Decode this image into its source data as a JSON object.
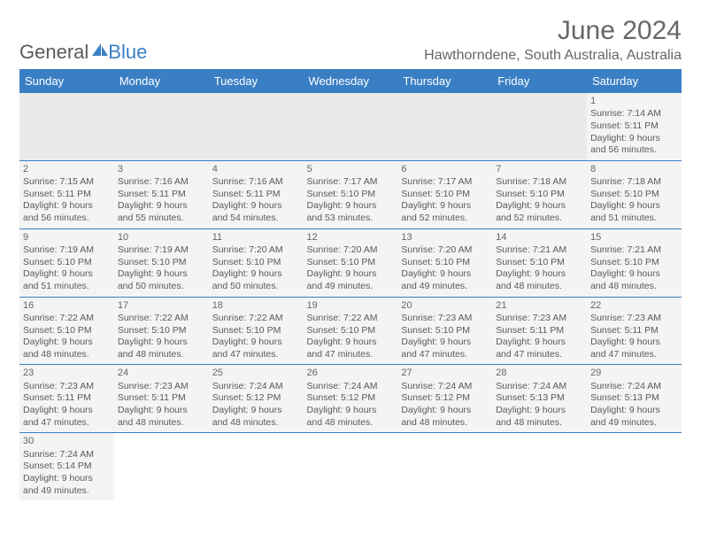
{
  "logo": {
    "text1": "General",
    "text2": "Blue",
    "icon_color": "#3a7fc4"
  },
  "title": "June 2024",
  "location": "Hawthorndene, South Australia, Australia",
  "colors": {
    "header_bg": "#3a7fc4",
    "header_text": "#ffffff",
    "cell_bg": "#f4f4f4",
    "empty_bg": "#eaeaea",
    "text": "#5a5a5a",
    "row_border": "#3a7fc4"
  },
  "day_headers": [
    "Sunday",
    "Monday",
    "Tuesday",
    "Wednesday",
    "Thursday",
    "Friday",
    "Saturday"
  ],
  "weeks": [
    [
      null,
      null,
      null,
      null,
      null,
      null,
      {
        "n": "1",
        "sr": "Sunrise: 7:14 AM",
        "ss": "Sunset: 5:11 PM",
        "dl": "Daylight: 9 hours and 56 minutes."
      }
    ],
    [
      {
        "n": "2",
        "sr": "Sunrise: 7:15 AM",
        "ss": "Sunset: 5:11 PM",
        "dl": "Daylight: 9 hours and 56 minutes."
      },
      {
        "n": "3",
        "sr": "Sunrise: 7:16 AM",
        "ss": "Sunset: 5:11 PM",
        "dl": "Daylight: 9 hours and 55 minutes."
      },
      {
        "n": "4",
        "sr": "Sunrise: 7:16 AM",
        "ss": "Sunset: 5:11 PM",
        "dl": "Daylight: 9 hours and 54 minutes."
      },
      {
        "n": "5",
        "sr": "Sunrise: 7:17 AM",
        "ss": "Sunset: 5:10 PM",
        "dl": "Daylight: 9 hours and 53 minutes."
      },
      {
        "n": "6",
        "sr": "Sunrise: 7:17 AM",
        "ss": "Sunset: 5:10 PM",
        "dl": "Daylight: 9 hours and 52 minutes."
      },
      {
        "n": "7",
        "sr": "Sunrise: 7:18 AM",
        "ss": "Sunset: 5:10 PM",
        "dl": "Daylight: 9 hours and 52 minutes."
      },
      {
        "n": "8",
        "sr": "Sunrise: 7:18 AM",
        "ss": "Sunset: 5:10 PM",
        "dl": "Daylight: 9 hours and 51 minutes."
      }
    ],
    [
      {
        "n": "9",
        "sr": "Sunrise: 7:19 AM",
        "ss": "Sunset: 5:10 PM",
        "dl": "Daylight: 9 hours and 51 minutes."
      },
      {
        "n": "10",
        "sr": "Sunrise: 7:19 AM",
        "ss": "Sunset: 5:10 PM",
        "dl": "Daylight: 9 hours and 50 minutes."
      },
      {
        "n": "11",
        "sr": "Sunrise: 7:20 AM",
        "ss": "Sunset: 5:10 PM",
        "dl": "Daylight: 9 hours and 50 minutes."
      },
      {
        "n": "12",
        "sr": "Sunrise: 7:20 AM",
        "ss": "Sunset: 5:10 PM",
        "dl": "Daylight: 9 hours and 49 minutes."
      },
      {
        "n": "13",
        "sr": "Sunrise: 7:20 AM",
        "ss": "Sunset: 5:10 PM",
        "dl": "Daylight: 9 hours and 49 minutes."
      },
      {
        "n": "14",
        "sr": "Sunrise: 7:21 AM",
        "ss": "Sunset: 5:10 PM",
        "dl": "Daylight: 9 hours and 48 minutes."
      },
      {
        "n": "15",
        "sr": "Sunrise: 7:21 AM",
        "ss": "Sunset: 5:10 PM",
        "dl": "Daylight: 9 hours and 48 minutes."
      }
    ],
    [
      {
        "n": "16",
        "sr": "Sunrise: 7:22 AM",
        "ss": "Sunset: 5:10 PM",
        "dl": "Daylight: 9 hours and 48 minutes."
      },
      {
        "n": "17",
        "sr": "Sunrise: 7:22 AM",
        "ss": "Sunset: 5:10 PM",
        "dl": "Daylight: 9 hours and 48 minutes."
      },
      {
        "n": "18",
        "sr": "Sunrise: 7:22 AM",
        "ss": "Sunset: 5:10 PM",
        "dl": "Daylight: 9 hours and 47 minutes."
      },
      {
        "n": "19",
        "sr": "Sunrise: 7:22 AM",
        "ss": "Sunset: 5:10 PM",
        "dl": "Daylight: 9 hours and 47 minutes."
      },
      {
        "n": "20",
        "sr": "Sunrise: 7:23 AM",
        "ss": "Sunset: 5:10 PM",
        "dl": "Daylight: 9 hours and 47 minutes."
      },
      {
        "n": "21",
        "sr": "Sunrise: 7:23 AM",
        "ss": "Sunset: 5:11 PM",
        "dl": "Daylight: 9 hours and 47 minutes."
      },
      {
        "n": "22",
        "sr": "Sunrise: 7:23 AM",
        "ss": "Sunset: 5:11 PM",
        "dl": "Daylight: 9 hours and 47 minutes."
      }
    ],
    [
      {
        "n": "23",
        "sr": "Sunrise: 7:23 AM",
        "ss": "Sunset: 5:11 PM",
        "dl": "Daylight: 9 hours and 47 minutes."
      },
      {
        "n": "24",
        "sr": "Sunrise: 7:23 AM",
        "ss": "Sunset: 5:11 PM",
        "dl": "Daylight: 9 hours and 48 minutes."
      },
      {
        "n": "25",
        "sr": "Sunrise: 7:24 AM",
        "ss": "Sunset: 5:12 PM",
        "dl": "Daylight: 9 hours and 48 minutes."
      },
      {
        "n": "26",
        "sr": "Sunrise: 7:24 AM",
        "ss": "Sunset: 5:12 PM",
        "dl": "Daylight: 9 hours and 48 minutes."
      },
      {
        "n": "27",
        "sr": "Sunrise: 7:24 AM",
        "ss": "Sunset: 5:12 PM",
        "dl": "Daylight: 9 hours and 48 minutes."
      },
      {
        "n": "28",
        "sr": "Sunrise: 7:24 AM",
        "ss": "Sunset: 5:13 PM",
        "dl": "Daylight: 9 hours and 48 minutes."
      },
      {
        "n": "29",
        "sr": "Sunrise: 7:24 AM",
        "ss": "Sunset: 5:13 PM",
        "dl": "Daylight: 9 hours and 49 minutes."
      }
    ],
    [
      {
        "n": "30",
        "sr": "Sunrise: 7:24 AM",
        "ss": "Sunset: 5:14 PM",
        "dl": "Daylight: 9 hours and 49 minutes."
      },
      null,
      null,
      null,
      null,
      null,
      null
    ]
  ]
}
